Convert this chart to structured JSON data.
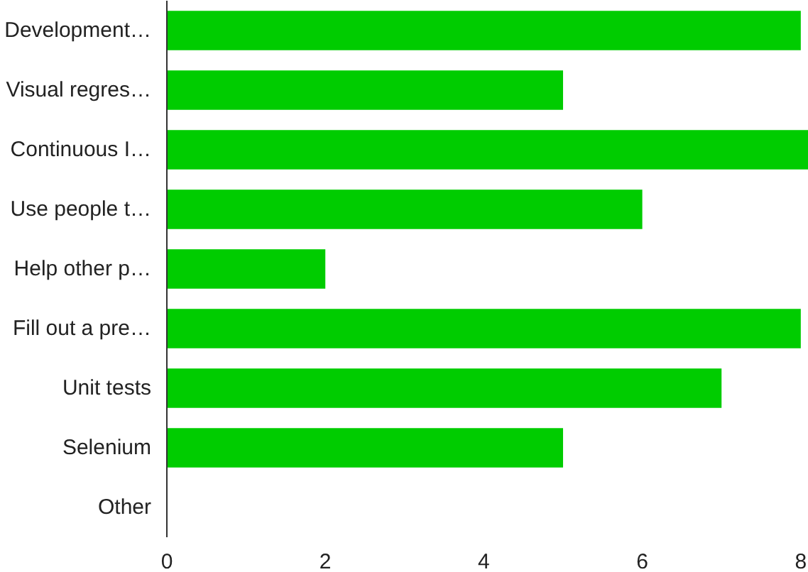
{
  "chart_data": {
    "type": "bar",
    "orientation": "horizontal",
    "categories": [
      "Development…",
      "Visual regres…",
      "Continuous I…",
      "Use people t…",
      "Help other p…",
      "Fill out a pre…",
      "Unit tests",
      "Selenium",
      "Other"
    ],
    "values": [
      8,
      5,
      8.1,
      6,
      2,
      8,
      7,
      5,
      0
    ],
    "color": "#00cc00",
    "xlim": [
      0,
      8.1
    ],
    "xticks": [
      0,
      2,
      4,
      6,
      8
    ],
    "grid": false
  }
}
